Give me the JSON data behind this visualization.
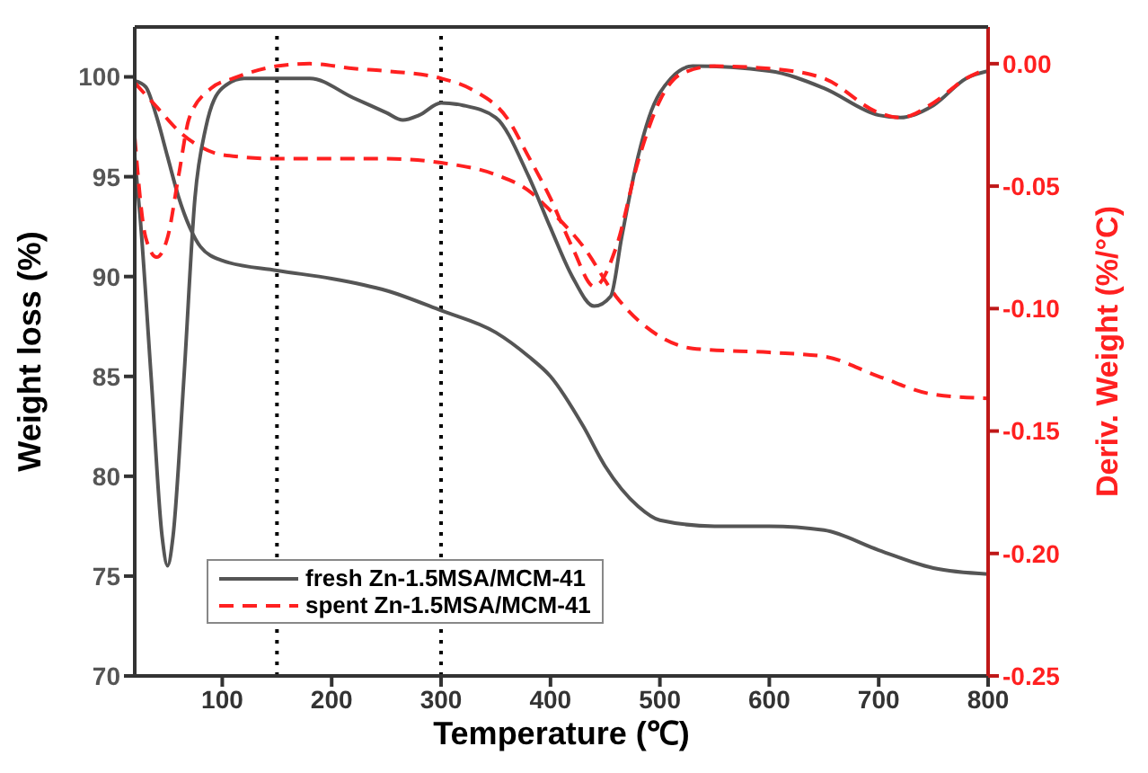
{
  "chart_data": {
    "type": "line",
    "xlabel": "Temperature (℃)",
    "ylabel": "Weight loss (%)",
    "y2label": "Deriv. Weight (%/°C)",
    "xlim": [
      20,
      800
    ],
    "xticks": [
      100,
      200,
      300,
      400,
      500,
      600,
      700,
      800
    ],
    "ylim": [
      70,
      102.5
    ],
    "yticks": [
      70,
      75,
      80,
      85,
      90,
      95,
      100
    ],
    "y2lim": [
      -0.25,
      0.015
    ],
    "y2ticks": [
      {
        "value": 0,
        "label": "0.00"
      },
      -0.05,
      {
        "value": -0.1,
        "label": "-0.10"
      },
      -0.15,
      {
        "value": -0.2,
        "label": "-0.20"
      },
      -0.25
    ],
    "legend": "bottom left",
    "ref_lines": [
      {
        "axis": "x",
        "value": 150,
        "color": "#000000",
        "line_style": "dotted"
      },
      {
        "axis": "x",
        "value": 300,
        "color": "#000000",
        "line_style": "dotted"
      }
    ],
    "series": [
      {
        "name": "fresh Zn-1.5MSA/MCM-41",
        "color": "#555555",
        "line_style": "solid",
        "x": [
          20,
          30,
          40,
          50,
          60,
          70,
          80,
          100,
          150,
          200,
          250,
          300,
          350,
          380,
          400,
          430,
          450,
          480,
          500,
          550,
          600,
          650,
          700,
          750,
          800
        ],
        "values": [
          99.8,
          99.5,
          98,
          96,
          94,
          92.5,
          91.5,
          90.8,
          90.3,
          89.9,
          89.3,
          88.3,
          87.2,
          86,
          85,
          82.5,
          80.5,
          78.5,
          77.8,
          77.5,
          77.5,
          77.3,
          76.3,
          75.4,
          75.1
        ]
      },
      {
        "name": "spent Zn-1.5MSA/MCM-41",
        "color": "#ff2020",
        "line_style": "dashed",
        "x": [
          20,
          40,
          60,
          80,
          100,
          150,
          200,
          250,
          300,
          350,
          380,
          400,
          430,
          460,
          500,
          530,
          600,
          650,
          700,
          750,
          800
        ],
        "values": [
          99.7,
          98.5,
          97.3,
          96.5,
          96.1,
          95.9,
          95.9,
          95.9,
          95.7,
          95.1,
          94.3,
          93.3,
          91.5,
          89,
          87,
          86.4,
          86.2,
          86,
          85,
          84.1,
          83.9
        ]
      },
      {
        "color": "#555555",
        "line_style": "solid",
        "axis": "y2",
        "x": [
          20,
          25,
          35,
          45,
          50,
          55,
          65,
          75,
          85,
          100,
          120,
          150,
          180,
          220,
          250,
          265,
          280,
          300,
          320,
          350,
          380,
          400,
          420,
          440,
          455,
          465,
          480,
          490,
          510,
          530,
          600,
          650,
          700,
          720,
          750,
          780,
          800
        ],
        "values": [
          -0.038,
          -0.063,
          -0.128,
          -0.193,
          -0.205,
          -0.193,
          -0.128,
          -0.055,
          -0.026,
          -0.01,
          -0.006,
          -0.006,
          -0.006,
          -0.014,
          -0.02,
          -0.023,
          -0.021,
          -0.016,
          -0.017,
          -0.022,
          -0.046,
          -0.067,
          -0.087,
          -0.099,
          -0.095,
          -0.071,
          -0.038,
          -0.022,
          -0.006,
          -0.001,
          -0.003,
          -0.01,
          -0.021,
          -0.022,
          -0.017,
          -0.006,
          -0.003
        ]
      },
      {
        "color": "#ff2020",
        "line_style": "dashed",
        "axis": "y2",
        "x": [
          20,
          30,
          40,
          50,
          60,
          70,
          90,
          110,
          150,
          180,
          220,
          250,
          300,
          330,
          360,
          380,
          400,
          420,
          440,
          460,
          480,
          500,
          520,
          550,
          600,
          650,
          700,
          720,
          750,
          780,
          800
        ],
        "values": [
          -0.03,
          -0.071,
          -0.079,
          -0.071,
          -0.046,
          -0.022,
          -0.01,
          -0.006,
          -0.001,
          0,
          -0.002,
          -0.003,
          -0.006,
          -0.011,
          -0.022,
          -0.038,
          -0.055,
          -0.075,
          -0.091,
          -0.075,
          -0.04,
          -0.015,
          -0.004,
          -0.001,
          -0.002,
          -0.006,
          -0.02,
          -0.022,
          -0.016,
          -0.006,
          -0.002
        ]
      }
    ]
  }
}
